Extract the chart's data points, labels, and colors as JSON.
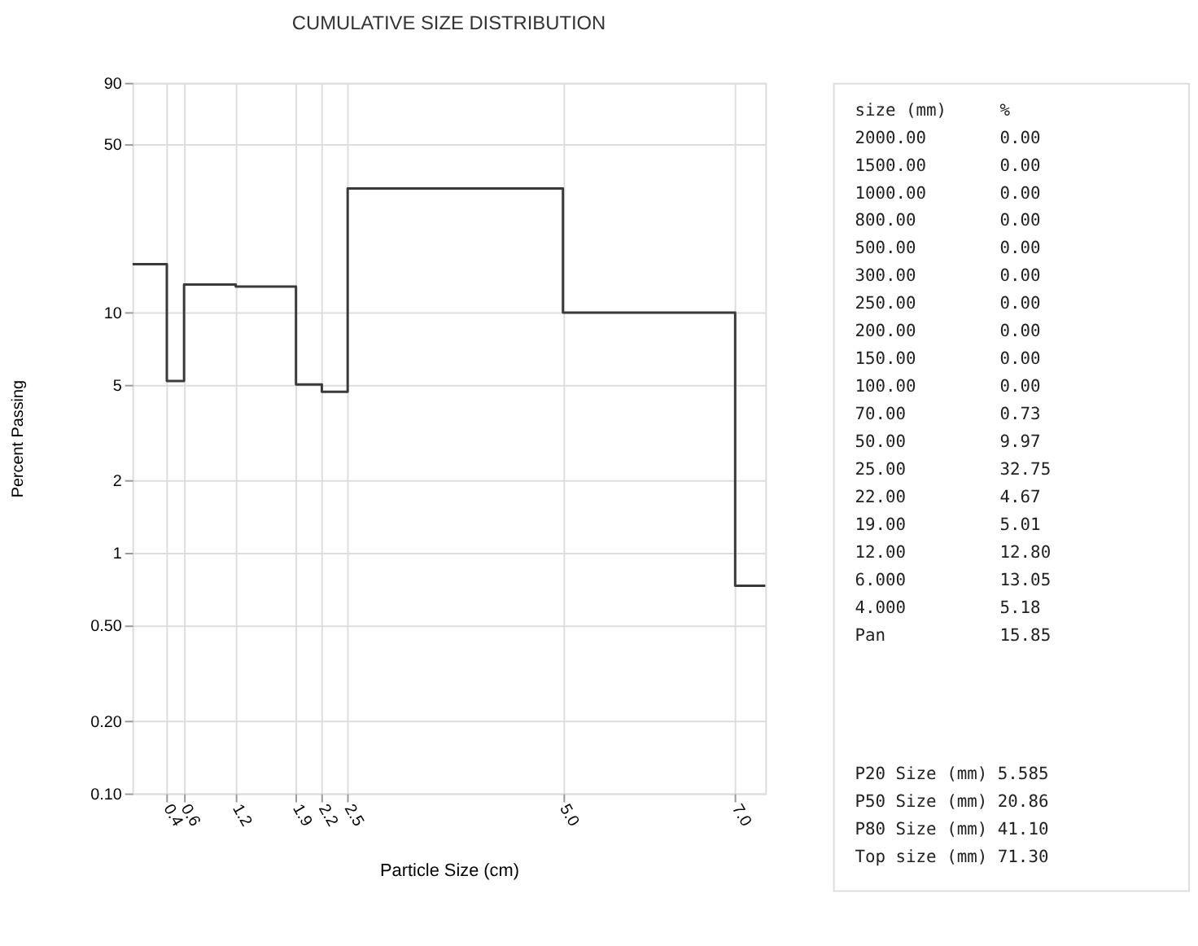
{
  "chart_data": {
    "type": "step",
    "title": "CUMULATIVE SIZE DISTRIBUTION",
    "xlabel": "Particle Size (cm)",
    "ylabel": "Percent Passing",
    "x": [
      0,
      0.4,
      0.6,
      1.2,
      1.9,
      2.2,
      2.5,
      5.0,
      7.0
    ],
    "series": [
      {
        "color": "#3a3a3a",
        "values": [
          15.85,
          5.18,
          13.05,
          12.8,
          5.01,
          4.67,
          32.75,
          9.97,
          0.73
        ]
      }
    ],
    "xlim": [
      0,
      7.35
    ],
    "xticks": [
      {
        "value": 0.4,
        "label": "0.4"
      },
      {
        "value": 0.6,
        "label": "0.6"
      },
      {
        "value": 1.2,
        "label": "1.2"
      },
      {
        "value": 1.9,
        "label": "1.9"
      },
      {
        "value": 2.2,
        "label": "2.2"
      },
      {
        "value": 2.5,
        "label": "2.5"
      },
      {
        "value": 5.0,
        "label": "5.0"
      },
      {
        "value": 7.0,
        "label": "7.0"
      }
    ],
    "ylim": [
      0.1,
      90
    ],
    "yticks": [
      {
        "value": 0.1,
        "label": "0.10"
      },
      {
        "value": 0.2,
        "label": "0.20"
      },
      {
        "value": 0.5,
        "label": "0.50"
      },
      1,
      2,
      5,
      10,
      50,
      90
    ],
    "log": "y",
    "grid": true,
    "line_style": "solid",
    "marker": "none",
    "annotations": [
      "size (mm)",
      "%",
      "2000.00",
      "0.00",
      "1500.00",
      "0.00",
      "1000.00",
      "0.00",
      "800.00",
      "0.00",
      "500.00",
      "0.00",
      "300.00",
      "0.00",
      "250.00",
      "0.00",
      "200.00",
      "0.00",
      "150.00",
      "0.00",
      "100.00",
      "0.00",
      "70.00",
      "0.73",
      "50.00",
      "9.97",
      "25.00",
      "32.75",
      "22.00",
      "4.67",
      "19.00",
      "5.01",
      "12.00",
      "12.80",
      "6.000",
      "13.05",
      "4.000",
      "5.18",
      "Pan",
      "15.85",
      "P20 Size (mm) 5.585",
      "P50 Size (mm) 20.86",
      "P80 Size (mm) 41.10",
      "Top size (mm) 71.30"
    ]
  }
}
